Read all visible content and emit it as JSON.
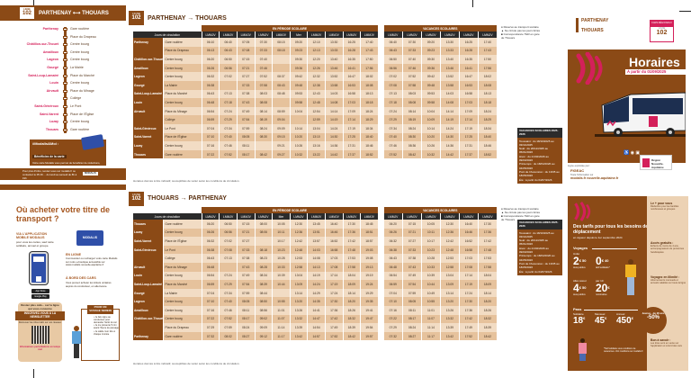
{
  "line_number": "102",
  "line_label": "LIGNE",
  "route_panel": {
    "title": "PARTHENAY ⟷ THOUARS",
    "stops": [
      {
        "commune": "Parthenay",
        "stop": "Gare routière"
      },
      {
        "commune": "",
        "stop": "Place du Drapeau"
      },
      {
        "commune": "Châtillon-sur-Thouet",
        "stop": "Centre bourg"
      },
      {
        "commune": "Amailloux",
        "stop": "Centre bourg"
      },
      {
        "commune": "Lageon",
        "stop": "Centre bourg"
      },
      {
        "commune": "Gourgé",
        "stop": "La Mairie"
      },
      {
        "commune": "Saint-Loup-Lamairé",
        "stop": "Place du Marché"
      },
      {
        "commune": "Louin",
        "stop": "Centre bourg"
      },
      {
        "commune": "Airvault",
        "stop": "Place du Minage"
      },
      {
        "commune": "",
        "stop": "Collège"
      },
      {
        "commune": "Saint-Généroux",
        "stop": "Le Pont"
      },
      {
        "commune": "Saint-Varent",
        "stop": "Place de l'Église"
      },
      {
        "commune": "Luzay",
        "stop": "Centre bourg"
      },
      {
        "commune": "Thouars",
        "stop": "Gare routière"
      }
    ],
    "promo_title": "#Modalis&Moi :",
    "promo_subtitle": "Bénéficiez de la carte",
    "promo_text": "Votre carte Modalis vous permet de bénéficier de réductions, d'abonnements et d'offres. Pensez à bien la valider à chaque montée.",
    "footer_text": "Pour plus d'infos, rendez-vous sur modalis.fr ou contactez le 05 49 ... du lundi au samedi de 8h à 19h",
    "footer_brand": "MODALIS"
  },
  "timetable_out": {
    "title": "PARTHENAY → THOUARS",
    "period_school": "EN PÉRIODE SCOLAIRE",
    "period_holiday": "VACANCES SCOLAIRES",
    "days_label": "Jours de circulation",
    "days_school": [
      "LMMJV",
      "LMMJV",
      "LMMJV",
      "LMMJV",
      "LMMJV",
      "Mer",
      "LMMJV",
      "LMMJV",
      "LMMJV",
      "LMMJV"
    ],
    "days_holiday": [
      "LMMJV",
      "LMMJV",
      "LMMJV",
      "LMMJV",
      "LMMJV",
      "LMMJV"
    ],
    "rows_school": [
      "06:10 06:40 07:05 07:30 08:15 09:20 12:10 13:30 16:25 17:40",
      "06:13 06:43 07:08 07:33 08:18 09:23 12:13 13:33 16:28 17:43",
      "06:20 06:50 07:15 07:40 - 09:30 12:20 13:40 16:35 17:50",
      "06:26 06:56 07:21 07:46 - 09:36 12:26 13:46 16:41 17:56",
      "06:32 07:02 07:27 07:52 08:37 09:42 12:32 13:52 16:47 18:02",
      "06:38 - 07:33 07:58 08:43 09:48 12:38 13:58 16:53 18:08",
      "06:43 07:13 07:38 08:03 08:48 09:53 12:43 14:03 16:58 18:13",
      "06:48 07:18 07:43 08:08 - 09:58 12:48 14:08 17:03 18:18",
      "06:54 07:24 07:49 08:14 08:59 10:04 12:54 14:14 17:09 18:24",
      "06:59 07:29 07:54 08:19 09:04 - 12:59 14:19 17:14 18:29",
      "07:04 07:34 07:59 08:24 09:09 10:14 13:04 14:24 17:19 18:34",
      "07:10 07:40 08:05 08:30 09:15 10:20 13:10 14:30 17:25 18:40",
      "07:16 07:46 08:11 - 09:21 10:26 13:16 14:36 17:31 18:46",
      "07:22 07:52 08:17 08:42 09:27 10:32 13:22 14:42 17:37 18:52"
    ],
    "rows_holiday": [
      "06:40 07:30 09:20 13:30 16:25 17:40",
      "06:43 07:33 09:23 13:33 16:28 17:43",
      "06:50 07:40 09:30 13:40 16:35 17:50",
      "06:56 07:46 09:36 13:46 16:41 17:56",
      "07:02 07:52 09:42 13:52 16:47 18:02",
      "07:08 07:58 09:48 13:58 16:53 18:08",
      "07:13 08:03 09:53 14:03 16:58 18:13",
      "07:18 08:08 09:58 14:08 17:03 18:18",
      "07:24 08:14 10:04 14:14 17:09 18:24",
      "07:29 08:19 10:09 14:19 17:14 18:29",
      "07:34 08:24 10:14 14:24 17:19 18:34",
      "07:40 08:30 10:20 14:30 17:25 18:40",
      "07:46 08:36 10:26 14:36 17:31 18:46",
      "07:52 08:42 10:32 14:42 17:37 18:52"
    ],
    "note": "Horaires donnés à titre indicatif, susceptibles de varier selon les conditions de circulation."
  },
  "timetable_in": {
    "title": "THOUARS → PARTHENAY",
    "period_school": "EN PÉRIODE SCOLAIRE",
    "period_holiday": "VACANCES SCOLAIRES",
    "days_label": "Jours de circulation",
    "days_school": [
      "LMMJV",
      "LMMJV",
      "LMMJV",
      "LMMJV",
      "Mer",
      "LMMJV",
      "LMMJV",
      "LMMJV",
      "LMMJV",
      "LMMJV"
    ],
    "days_holiday": [
      "LMMJV",
      "LMMJV",
      "LMMJV",
      "LMMJV",
      "LMMJV",
      "LMMJV"
    ],
    "rows_school": [
      "06:20 06:50 07:15 08:00 10:05 12:30 13:45 16:40 17:30 18:45",
      "06:26 06:56 07:21 08:06 10:11 12:36 13:51 16:46 17:36 18:51",
      "06:32 07:02 07:27 - 10:17 12:42 13:57 16:52 17:42 18:57",
      "06:38 07:08 07:33 08:18 10:23 12:48 14:03 16:58 17:48 19:03",
      "06:43 07:13 07:38 08:23 10:28 12:53 14:08 17:03 17:53 19:08",
      "06:48 - 07:43 08:28 10:33 12:58 14:13 17:08 17:58 19:13",
      "06:54 07:24 07:49 08:34 10:39 13:04 14:19 17:14 18:04 19:19",
      "06:59 07:29 07:54 08:39 10:44 13:09 14:24 17:19 18:09 19:24",
      "07:04 07:34 07:59 08:44 - 13:14 14:29 17:24 18:14 19:29",
      "07:10 07:40 08:05 08:50 10:55 13:20 14:35 17:30 18:20 19:35",
      "07:16 07:46 08:11 08:56 11:01 13:26 14:41 17:36 18:26 19:41",
      "07:22 07:52 08:17 09:02 11:07 13:32 14:47 17:42 18:32 19:47",
      "07:29 07:59 08:24 09:09 11:14 13:39 14:54 17:49 18:39 19:54",
      "07:32 08:02 08:27 09:12 11:17 13:42 14:57 17:52 18:42 19:57"
    ],
    "rows_holiday": [
      "06:20 07:15 10:05 12:30 16:40 17:30",
      "06:26 07:21 10:11 12:36 16:46 17:36",
      "06:32 07:27 10:17 12:42 16:52 17:42",
      "06:38 07:33 10:23 12:48 16:58 17:48",
      "06:43 07:38 10:28 12:53 17:03 17:53",
      "06:48 07:43 10:33 12:58 17:08 17:58",
      "06:54 07:49 10:39 13:04 17:14 18:04",
      "06:59 07:54 10:44 13:09 17:19 18:09",
      "07:04 07:59 10:49 13:14 17:24 18:14",
      "07:10 08:05 10:55 13:20 17:30 18:20",
      "07:16 08:11 11:01 13:26 17:36 18:26",
      "07:22 08:17 11:07 13:32 17:42 18:32",
      "07:29 08:24 11:14 13:39 17:49 18:39",
      "07:32 08:27 11:17 13:42 17:52 18:42"
    ],
    "note": "Horaires donnés à titre indicatif, susceptibles de varier selon les conditions de circulation."
  },
  "legend": [
    "● Réservé au transport scolaire",
    "▲ Ne circule pas les jours fériés",
    "■ Correspondance TER en gare de Thouars"
  ],
  "holidays": {
    "title": "VACANCES SCOLAIRES 2025-2026",
    "lines": [
      "Toussaint : du 18/10/2025 au 03/11/2025",
      "Noël : du 20/12/2025 au 05/01/2026",
      "Hiver : du 21/02/2026 au 09/03/2026",
      "Printemps : du 18/04/2026 au 04/05/2026",
      "Pont de l'Ascension : du 13/05 au 18/05/2026",
      "Été : à partir du 04/07/2026"
    ]
  },
  "cover": {
    "from": "PARTHENAY",
    "to": "THOUARS",
    "badge_top": "CARS RÉGIONAUX",
    "title": "Horaires",
    "valid_from": "À partir du 01/09/2025",
    "operator_label": "Ligne exploitée par :",
    "operator": "FIGEAC",
    "info_label": "Toute l'information sur",
    "info_site": "modalis.fr",
    "info_site2": "nouvelle-aquitaine.fr",
    "region": "Région Nouvelle-Aquitaine"
  },
  "buy": {
    "title": "Où acheter votre titre de transport ?",
    "app_title": "VIA L'APPLICATION MOBILE MODALIS",
    "app_text": "pour vous les cartes, sauf carte solidaire, annuel et groupe.",
    "card_label": "MODALIS",
    "online_title": "EN LIGNE",
    "online_text": "Commandez ou rechargez votre carte Modalis sur notre e-boutique accessible sur www.modalis.nouvelle-aquitaine.fr",
    "onboard_title": "À BORD DES CARS",
    "onboard_text": "Vous pouvez acheter les tickets unitaires auprès du conducteur, en alternance.",
    "store1": "App Store",
    "store2": "Google Play",
    "news_intro": "Restez plus calé... sur la ligne qui vous concerne",
    "news_title": "INSCRIVEZ-VOUS À LA NEWSLETTER",
    "news_text": "Retrouvez les infos trafic sur nos réseaux",
    "news_alert": "Informations perturbations en temps réel",
    "serene_title": "POUR UN VOYAGE SEREIN",
    "serene_lines": [
      "Je fais signe au conducteur pour demander l'arrêt du car",
      "Je me présente 5 min avant l'heure de passage",
      "Je valide mon titre à chaque montée"
    ]
  },
  "fares": {
    "title": "Des tarifs pour tous les besoins de déplacement",
    "subtitle": "en vigueur depuis le 1er septembre 2024",
    "voyages_label": "Voyages",
    "pass_label": "Pass",
    "items": [
      {
        "label": "Unité",
        "price": "2",
        "cents": "50",
        "note": "tous publics"
      },
      {
        "label": "",
        "price": "0",
        "cents": "40",
        "note": "tarif solidaire*"
      },
      {
        "label": "Aller-retour",
        "price": "4",
        "cents": "50",
        "note": "tous publics"
      },
      {
        "label": "par 10",
        "price": "20",
        "cents": "",
        "note": "nominative"
      }
    ],
    "passes": [
      {
        "label": "Solidaire",
        "price": "18"
      },
      {
        "label": "Mensuel",
        "price": "45"
      },
      {
        "label": "Annuel",
        "price": "450"
      }
    ],
    "currency": "€",
    "side": [
      {
        "title": "Le + pour vous",
        "text": "Réduction pour les familles nombreuses et groupes"
      },
      {
        "title": "Accès gratuits :",
        "text": "Enfants de moins de 4 ans, accompagnateurs de personnes handicapées"
      },
      {
        "title": "Voyagez en illimité :",
        "text": "Abonnements mensuels et annuels valables sur toute la ligne"
      },
      {
        "title": "Bon à savoir :",
        "text": "Les titres sont en vente sur l'application et à bord des cars"
      }
    ],
    "youth_title": "Jeunes - de 26 ans",
    "youth_discount": "-50%",
    "footnote": "*Tarif solidaire sous conditions de ressources. Voir conditions sur modalis.fr"
  }
}
